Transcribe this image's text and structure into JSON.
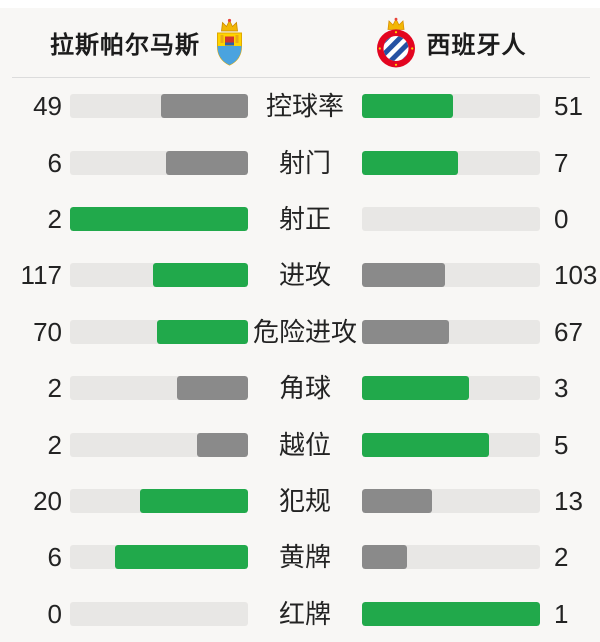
{
  "colors": {
    "background": "#f8f7f5",
    "top_strip": "#ffffff",
    "divider": "#dcdcdc",
    "track": "#e8e7e5",
    "win_fill": "#21a94b",
    "lose_fill": "#8a8a8a",
    "text": "#232323"
  },
  "header": {
    "home": {
      "name": "拉斯帕尔马斯",
      "badge_icon": "las-palmas-crest-icon"
    },
    "away": {
      "name": "西班牙人",
      "badge_icon": "espanyol-crest-icon"
    }
  },
  "stats": [
    {
      "label": "控球率",
      "home": 49,
      "away": 51
    },
    {
      "label": "射门",
      "home": 6,
      "away": 7
    },
    {
      "label": "射正",
      "home": 2,
      "away": 0
    },
    {
      "label": "进攻",
      "home": 117,
      "away": 103
    },
    {
      "label": "危险进攻",
      "home": 70,
      "away": 67
    },
    {
      "label": "角球",
      "home": 2,
      "away": 3
    },
    {
      "label": "越位",
      "home": 2,
      "away": 5
    },
    {
      "label": "犯规",
      "home": 20,
      "away": 13
    },
    {
      "label": "黄牌",
      "home": 6,
      "away": 2
    },
    {
      "label": "红牌",
      "home": 0,
      "away": 1
    }
  ],
  "chart_data": {
    "type": "bar",
    "title": "拉斯帕尔马斯 vs 西班牙人",
    "categories": [
      "控球率",
      "射门",
      "射正",
      "进攻",
      "危险进攻",
      "角球",
      "越位",
      "犯规",
      "黄牌",
      "红牌"
    ],
    "series": [
      {
        "name": "拉斯帕尔马斯",
        "values": [
          49,
          6,
          2,
          117,
          70,
          2,
          2,
          20,
          6,
          0
        ]
      },
      {
        "name": "西班牙人",
        "values": [
          51,
          7,
          0,
          103,
          67,
          3,
          5,
          13,
          2,
          1
        ]
      }
    ],
    "layout": "paired horizontal bars filling outward from center; higher value colored green, lower gray; bar length = value / (home+away)"
  }
}
